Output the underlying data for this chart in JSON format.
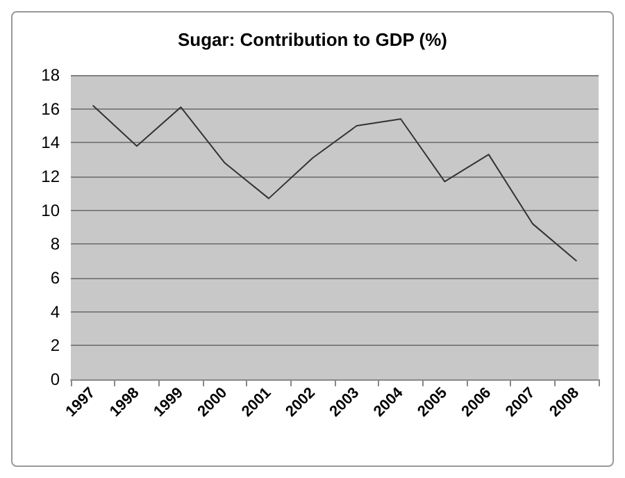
{
  "chart_data": {
    "type": "line",
    "title": "Sugar: Contribution to GDP (%)",
    "categories": [
      "1997",
      "1998",
      "1999",
      "2000",
      "2001",
      "2002",
      "2003",
      "2004",
      "2005",
      "2006",
      "2007",
      "2008"
    ],
    "series": [
      {
        "color": "#333333",
        "values": [
          16.2,
          13.8,
          16.1,
          12.8,
          10.7,
          13.1,
          15.0,
          15.4,
          11.7,
          13.3,
          9.2,
          7.0
        ]
      }
    ],
    "ylim": [
      0,
      18
    ],
    "yticks": [
      0,
      2,
      4,
      6,
      8,
      10,
      12,
      14,
      16,
      18
    ],
    "grid": "y",
    "marker": "none",
    "line_style": "solid"
  }
}
